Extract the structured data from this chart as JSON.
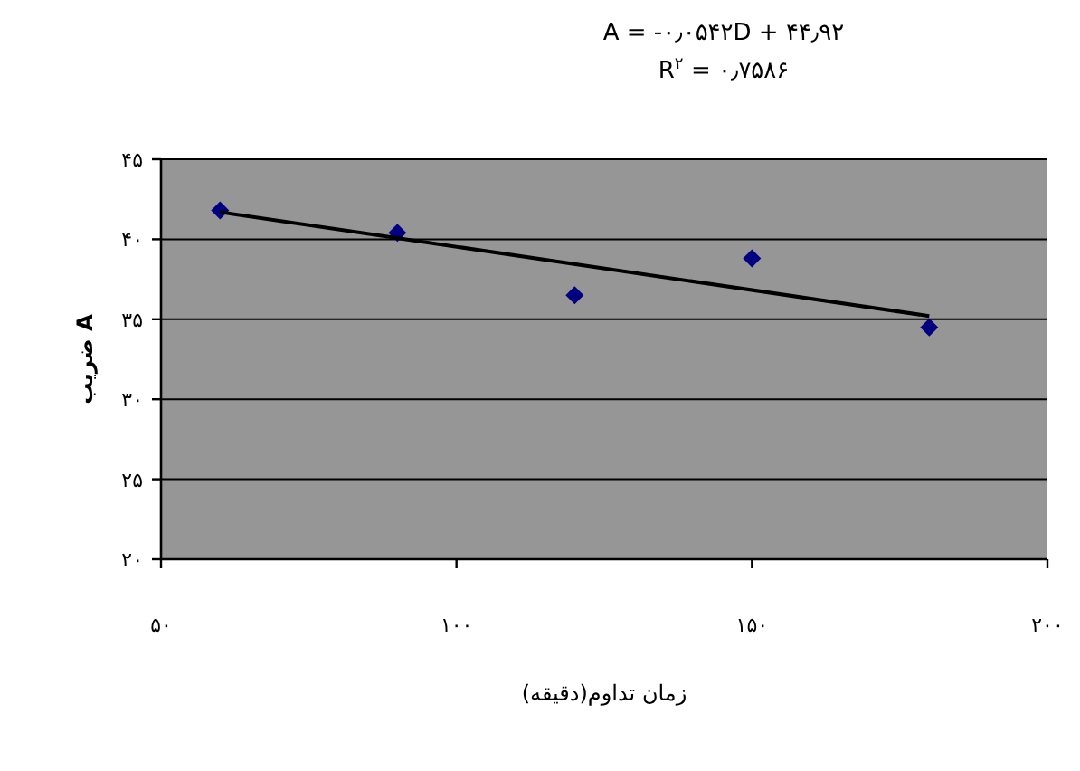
{
  "chart_data": {
    "type": "scatter",
    "xlabel": "زمان تداوم(دقیقه)",
    "ylabel": "ضریب A",
    "annotations": [
      "A = -۰٫۰۵۴۲D + ۴۴٫۹۲",
      "R$^{۲}$ = ۰٫۷۵۸۶"
    ],
    "series": [
      {
        "color": "#000080",
        "marker": "diamond",
        "x": [
          60,
          90,
          120,
          150,
          180
        ],
        "values": [
          41.8,
          40.4,
          36.5,
          38.8,
          34.5
        ]
      },
      {
        "type": "line",
        "color": "#000000",
        "marker": "none",
        "x": [
          60,
          180
        ],
        "values": [
          41.7,
          35.2
        ]
      }
    ],
    "xlim": [
      50,
      200
    ],
    "ylim": [
      20,
      45
    ],
    "xticks": [
      {
        "value": 50,
        "label": "۵۰"
      },
      {
        "value": 100,
        "label": "۱۰۰"
      },
      {
        "value": 150,
        "label": "۱۵۰"
      },
      {
        "value": 200,
        "label": "۲۰۰"
      }
    ],
    "yticks": [
      {
        "value": 20,
        "label": "۲۰"
      },
      {
        "value": 25,
        "label": "۲۵"
      },
      {
        "value": 30,
        "label": "۳۰"
      },
      {
        "value": 35,
        "label": "۳۵"
      },
      {
        "value": 40,
        "label": "۴۰"
      },
      {
        "value": 45,
        "label": "۴۵"
      }
    ],
    "grid": "y"
  }
}
